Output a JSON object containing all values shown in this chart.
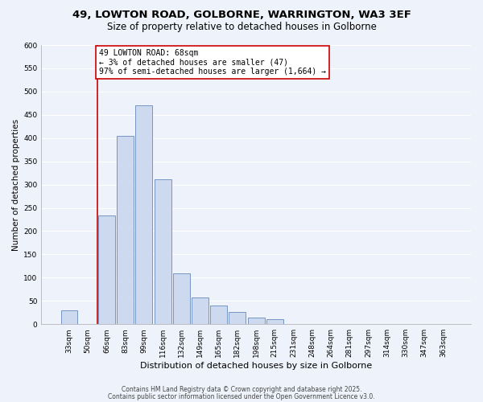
{
  "title": "49, LOWTON ROAD, GOLBORNE, WARRINGTON, WA3 3EF",
  "subtitle": "Size of property relative to detached houses in Golborne",
  "xlabel": "Distribution of detached houses by size in Golborne",
  "ylabel": "Number of detached properties",
  "bar_labels": [
    "33sqm",
    "50sqm",
    "66sqm",
    "83sqm",
    "99sqm",
    "116sqm",
    "132sqm",
    "149sqm",
    "165sqm",
    "182sqm",
    "198sqm",
    "215sqm",
    "231sqm",
    "248sqm",
    "264sqm",
    "281sqm",
    "297sqm",
    "314sqm",
    "330sqm",
    "347sqm",
    "363sqm"
  ],
  "bar_values": [
    30,
    0,
    233,
    405,
    470,
    312,
    110,
    57,
    40,
    27,
    15,
    10,
    0,
    0,
    0,
    0,
    0,
    0,
    0,
    0,
    0
  ],
  "bar_color": "#ccd9ee",
  "bar_edge_color": "#6688bb",
  "ylim": [
    0,
    600
  ],
  "yticks": [
    0,
    50,
    100,
    150,
    200,
    250,
    300,
    350,
    400,
    450,
    500,
    550,
    600
  ],
  "vline_color": "#cc0000",
  "vline_x_index": 1.5,
  "annotation_text": "49 LOWTON ROAD: 68sqm\n← 3% of detached houses are smaller (47)\n97% of semi-detached houses are larger (1,664) →",
  "annotation_box_color": "#ffffff",
  "annotation_box_edge": "#cc0000",
  "footer1": "Contains HM Land Registry data © Crown copyright and database right 2025.",
  "footer2": "Contains public sector information licensed under the Open Government Licence v3.0.",
  "bg_color": "#eef2fa",
  "grid_color": "#ffffff",
  "title_fontsize": 9.5,
  "subtitle_fontsize": 8.5,
  "ylabel_fontsize": 7.5,
  "xlabel_fontsize": 8,
  "tick_fontsize": 6.5,
  "ann_fontsize": 7,
  "footer_fontsize": 5.5
}
